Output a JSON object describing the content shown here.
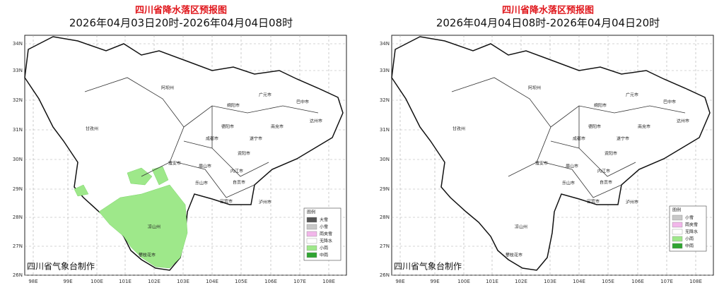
{
  "panels": [
    {
      "title": "四川省降水落区预报图",
      "subtitle": "2026年04月03日20时-2026年04月04日08时",
      "lat_labels": [
        "34N",
        "33N",
        "32N",
        "31N",
        "30N",
        "29N",
        "28N",
        "27N",
        "26N"
      ],
      "lon_labels": [
        "98E",
        "99E",
        "100E",
        "101E",
        "102E",
        "103E",
        "104E",
        "105E",
        "106E",
        "107E",
        "108E"
      ],
      "cities": [
        "阿坝州",
        "绵阳市",
        "广元市",
        "巴中市",
        "甘孜州",
        "德阳市",
        "南充市",
        "达州市",
        "成都市",
        "遂宁市",
        "资阳市",
        "雅安市",
        "眉山市",
        "内江市",
        "乐山市",
        "自贡市",
        "宜宾市",
        "泸州市",
        "凉山州",
        "攀枝花市"
      ],
      "legend": {
        "title": "图例",
        "items": [
          "大雪",
          "小雪",
          "雨夹雪",
          "无降水",
          "小雨",
          "中雨"
        ]
      },
      "footer": "四川省气象台制作"
    },
    {
      "title": "四川省降水落区预报图",
      "subtitle": "2026年04月04日08时-2026年04月04日20时",
      "lat_labels": [
        "34N",
        "33N",
        "32N",
        "31N",
        "30N",
        "29N",
        "28N",
        "27N",
        "26N"
      ],
      "lon_labels": [
        "98E",
        "99E",
        "100E",
        "101E",
        "102E",
        "103E",
        "104E",
        "105E",
        "106E",
        "107E",
        "108E"
      ],
      "cities": [
        "阿坝州",
        "绵阳市",
        "广元市",
        "巴中市",
        "甘孜州",
        "德阳市",
        "南充市",
        "达州市",
        "成都市",
        "遂宁市",
        "资阳市",
        "雅安市",
        "眉山市",
        "内江市",
        "乐山市",
        "自贡市",
        "宜宾市",
        "泸州市",
        "凉山州",
        "攀枝花市"
      ],
      "legend": {
        "title": "图例",
        "items": [
          "小雪",
          "雨夹雪",
          "无降水",
          "小雨",
          "中雨"
        ]
      },
      "footer": "四川省气象台制作"
    }
  ]
}
